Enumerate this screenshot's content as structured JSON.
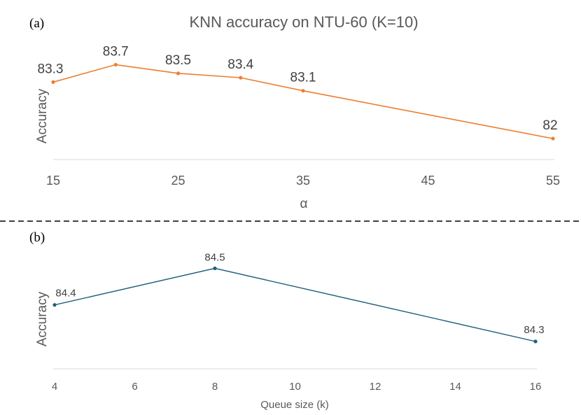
{
  "chart_data": [
    {
      "panel_label": "(a)",
      "type": "line",
      "title": "KNN accuracy on NTU-60 (K=10)",
      "xlabel": "α",
      "ylabel": "Accuracy",
      "x": [
        15,
        20,
        25,
        30,
        35,
        55
      ],
      "values": [
        83.3,
        83.7,
        83.5,
        83.4,
        83.1,
        82
      ],
      "data_labels": [
        "83.3",
        "83.7",
        "83.5",
        "83.4",
        "83.1",
        "82"
      ],
      "xticks": [
        "15",
        "25",
        "35",
        "45",
        "55"
      ],
      "xlim": [
        15,
        55
      ],
      "ylim": [
        81.5,
        83.9
      ],
      "color": "#ED7D31",
      "grid": false
    },
    {
      "panel_label": "(b)",
      "type": "line",
      "title": "",
      "xlabel": "Queue size (k)",
      "ylabel": "Accuracy",
      "x": [
        4,
        8,
        16
      ],
      "values": [
        84.4,
        84.5,
        84.3
      ],
      "data_labels": [
        "84.4",
        "84.5",
        "84.3"
      ],
      "xticks": [
        "4",
        "6",
        "8",
        "10",
        "12",
        "14",
        "16"
      ],
      "xlim": [
        4,
        16
      ],
      "ylim": [
        84.25,
        84.52
      ],
      "color": "#1F5F7A",
      "grid": false
    }
  ]
}
